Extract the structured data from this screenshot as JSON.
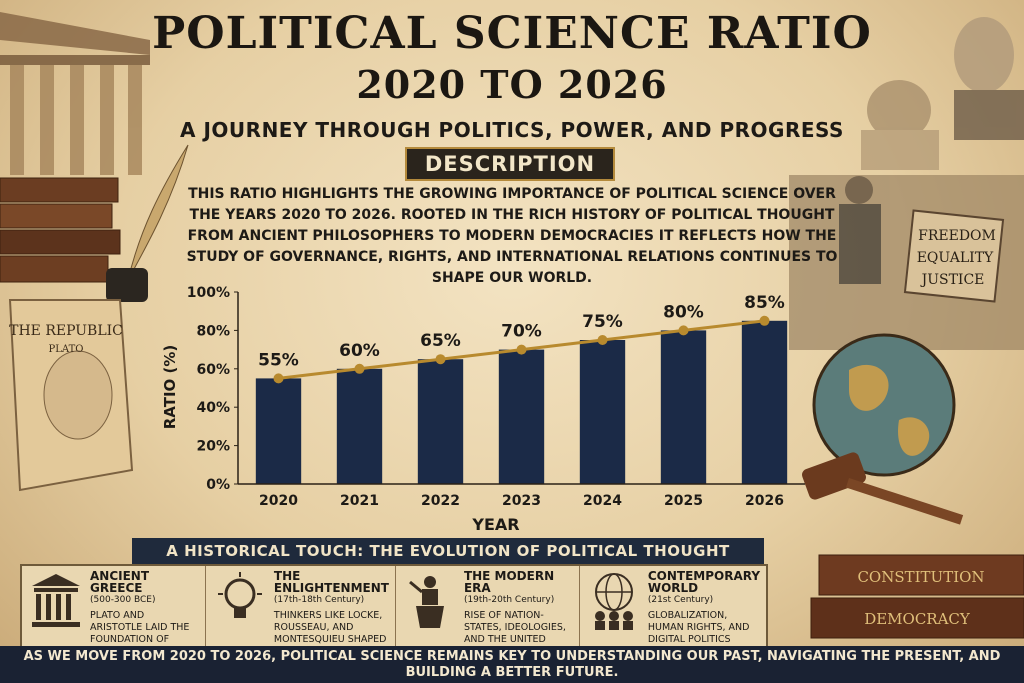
{
  "title_line1": "POLITICAL SCIENCE RATIO",
  "title_line2": "2020 TO 2026",
  "subtitle": "A JOURNEY THROUGH POLITICS, POWER, AND PROGRESS",
  "description_heading": "DESCRIPTION",
  "description_text": "This ratio highlights the growing importance of political science over the years 2020 to 2026. Rooted in the rich history of political thought from ancient philosophers to modern democracies it reflects how the study of governance, rights, and international relations continues to shape our world.",
  "left_scroll": {
    "title": "THE REPUBLIC",
    "author": "PLATO"
  },
  "protest_sign": [
    "FREEDOM",
    "EQUALITY",
    "JUSTICE"
  ],
  "books": [
    "CONSTITUTION",
    "DEMOCRACY"
  ],
  "colors": {
    "bar": "#1b2a47",
    "line": "#b88a2e",
    "footer": "#1a2233"
  },
  "chart_data": {
    "type": "bar",
    "categories": [
      "2020",
      "2021",
      "2022",
      "2023",
      "2024",
      "2025",
      "2026"
    ],
    "values": [
      55,
      60,
      65,
      70,
      75,
      80,
      85
    ],
    "data_labels": [
      "55%",
      "60%",
      "65%",
      "70%",
      "75%",
      "80%",
      "85%"
    ],
    "overlay_line": true,
    "ylabel": "RATIO (%)",
    "xlabel": "YEAR",
    "ylim": [
      0,
      100
    ],
    "yticks": [
      "0%",
      "20%",
      "40%",
      "60%",
      "80%",
      "100%"
    ],
    "ytick_values": [
      0,
      20,
      40,
      60,
      80,
      100
    ]
  },
  "history": {
    "heading": "A HISTORICAL TOUCH: THE EVOLUTION OF POLITICAL THOUGHT",
    "eras": [
      {
        "icon": "temple-icon",
        "title": "ANCIENT GREECE",
        "dates": "(500-300 BCE)",
        "text": "Plato and Aristotle laid the foundation of political ideas."
      },
      {
        "icon": "lightbulb-icon",
        "title": "THE ENLIGHTENMENT",
        "dates": "(17th-18th Century)",
        "text": "Thinkers like Locke, Rousseau, and Montesquieu shaped modern democracy."
      },
      {
        "icon": "speaker-podium-icon",
        "title": "THE MODERN ERA",
        "dates": "(19th-20th Century)",
        "text": "Rise of nation-states, ideologies, and the United Nations."
      },
      {
        "icon": "globe-people-icon",
        "title": "CONTEMPORARY WORLD",
        "dates": "(21st Century)",
        "text": "Globalization, human rights, and digital politics emerge."
      }
    ]
  },
  "footer_text": "AS WE MOVE FROM 2020 TO 2026, POLITICAL SCIENCE REMAINS KEY TO UNDERSTANDING OUR PAST, NAVIGATING THE PRESENT, AND BUILDING A BETTER FUTURE."
}
